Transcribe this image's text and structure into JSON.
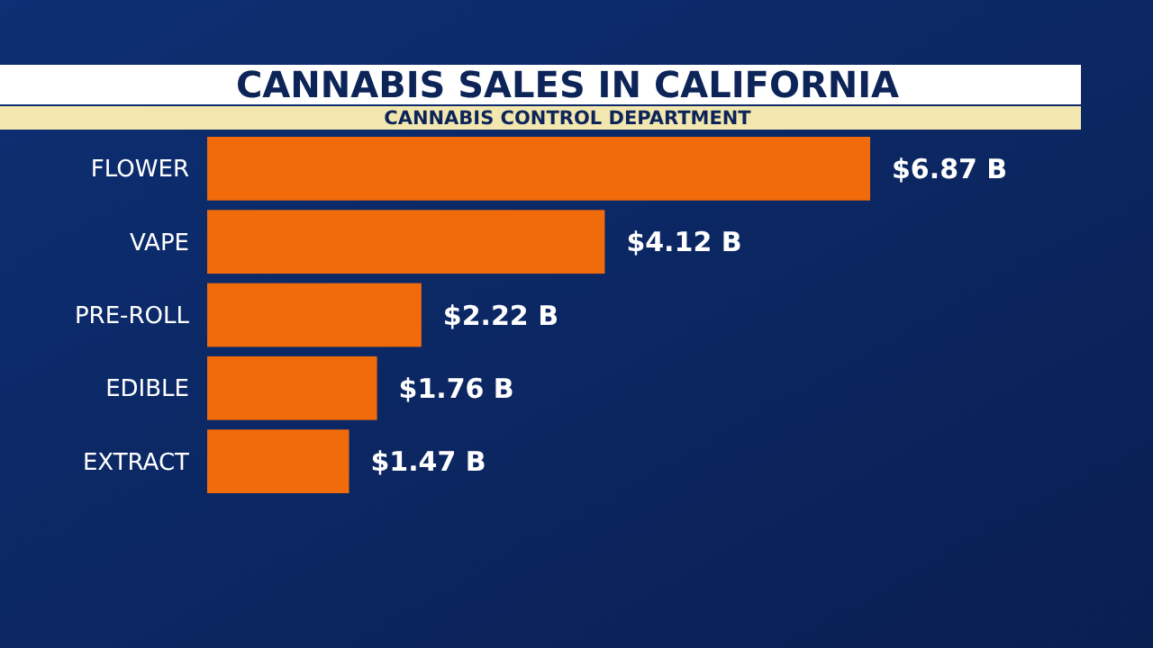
{
  "chart_data": {
    "type": "bar",
    "orientation": "horizontal",
    "title": "CANNABIS SALES IN CALIFORNIA",
    "subtitle": "CANNABIS CONTROL DEPARTMENT",
    "categories": [
      "FLOWER",
      "VAPE",
      "PRE-ROLL",
      "EDIBLE",
      "EXTRACT"
    ],
    "values": [
      6.87,
      4.12,
      2.22,
      1.76,
      1.47
    ],
    "value_labels": [
      "$6.87 B",
      "$4.12 B",
      "$2.22 B",
      "$1.76 B",
      "$1.47 B"
    ],
    "color": "#f26b0a",
    "xlim": [
      0,
      6.87
    ]
  }
}
